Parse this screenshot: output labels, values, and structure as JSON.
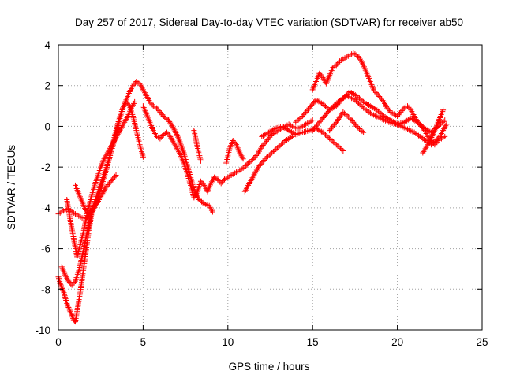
{
  "chart_data": {
    "type": "scatter",
    "title": "Day 257 of 2017, Sidereal Day-to-day VTEC variation (SDTVAR) for receiver ab50",
    "xlabel": "GPS time / hours",
    "ylabel": "SDTVAR / TECUs",
    "xlim": [
      0,
      25
    ],
    "ylim": [
      -10,
      4
    ],
    "xticks": [
      0,
      5,
      10,
      15,
      20,
      25
    ],
    "yticks": [
      -10,
      -8,
      -6,
      -4,
      -2,
      0,
      2,
      4
    ],
    "grid": true,
    "legend": "none",
    "marker": "+",
    "color": "#ff0000",
    "series": [
      {
        "x": [
          0.0,
          0.1,
          0.2,
          0.3,
          0.4,
          0.5,
          0.6,
          0.7,
          0.8,
          0.9,
          1.0,
          1.1,
          1.2,
          1.3,
          1.4,
          1.5,
          1.6,
          1.7,
          1.8,
          1.9,
          2.0,
          2.2,
          2.4,
          2.6,
          2.8,
          3.0,
          3.2,
          3.4,
          3.6,
          3.8,
          4.0,
          4.2,
          4.4,
          4.6,
          4.8,
          5.0,
          5.2,
          5.4,
          5.6,
          5.8,
          6.0,
          6.2,
          6.5
        ],
        "y": [
          -7.4,
          -7.7,
          -7.9,
          -8.1,
          -8.4,
          -8.7,
          -8.9,
          -9.1,
          -9.3,
          -9.5,
          -9.6,
          -9.1,
          -8.6,
          -8.1,
          -7.5,
          -6.9,
          -6.3,
          -5.7,
          -5.1,
          -4.6,
          -4.1,
          -3.6,
          -3.1,
          -2.6,
          -2.1,
          -1.6,
          -1.0,
          -0.4,
          0.3,
          0.9,
          1.3,
          1.7,
          2.0,
          2.2,
          2.1,
          1.8,
          1.5,
          1.2,
          1.0,
          0.9,
          0.7,
          0.5,
          0.3
        ]
      },
      {
        "x": [
          0.0,
          0.2,
          0.4,
          0.6,
          0.8,
          1.0,
          1.2,
          1.4,
          1.6,
          1.8,
          2.0,
          2.2,
          2.4,
          2.6,
          2.8,
          3.0,
          3.2,
          3.4,
          3.6,
          3.8,
          4.0,
          4.2,
          4.4,
          4.6,
          4.8,
          5.0
        ],
        "y": [
          -4.3,
          -4.2,
          -4.1,
          -4.1,
          -4.2,
          -4.3,
          -4.4,
          -4.5,
          -4.5,
          -4.4,
          -4.2,
          -3.8,
          -3.3,
          -2.8,
          -2.2,
          -1.6,
          -0.9,
          -0.2,
          0.4,
          0.9,
          1.2,
          1.0,
          0.5,
          -0.2,
          -0.9,
          -1.5
        ]
      },
      {
        "x": [
          0.5,
          0.7,
          0.9,
          1.1,
          1.3,
          1.5,
          1.7,
          1.9,
          2.1,
          2.3,
          2.5,
          2.7,
          2.9,
          3.1,
          3.3,
          3.5,
          3.7,
          3.9,
          4.1,
          4.3,
          4.5
        ],
        "y": [
          -3.6,
          -4.6,
          -5.5,
          -6.4,
          -5.8,
          -5.1,
          -4.3,
          -3.6,
          -3.0,
          -2.5,
          -2.0,
          -1.6,
          -1.3,
          -1.0,
          -0.7,
          -0.4,
          -0.1,
          0.2,
          0.5,
          0.9,
          1.2
        ]
      },
      {
        "x": [
          1.0,
          1.2,
          1.4,
          1.6,
          1.8,
          2.0,
          2.2,
          2.4,
          2.6,
          2.8,
          3.0,
          3.2,
          3.4
        ],
        "y": [
          -2.9,
          -3.3,
          -3.7,
          -4.1,
          -4.3,
          -4.2,
          -3.9,
          -3.6,
          -3.3,
          -3.0,
          -2.8,
          -2.6,
          -2.4
        ]
      },
      {
        "x": [
          0.2,
          0.4,
          0.6,
          0.8,
          1.0,
          1.2,
          1.4,
          1.6,
          1.8,
          2.0
        ],
        "y": [
          -6.9,
          -7.3,
          -7.6,
          -7.8,
          -7.6,
          -7.1,
          -6.4,
          -5.6,
          -4.8,
          -4.0
        ]
      },
      {
        "x": [
          5.0,
          5.2,
          5.4,
          5.6,
          5.8,
          6.0,
          6.2,
          6.4,
          6.6,
          6.8,
          7.0,
          7.2,
          7.4,
          7.6,
          7.8,
          8.0,
          8.2,
          8.4,
          8.6,
          8.8,
          9.0,
          9.2,
          9.4,
          9.6,
          9.8,
          10.0,
          10.2,
          10.4,
          10.6,
          10.8,
          11.0,
          11.2,
          11.4,
          11.6,
          11.8,
          12.0,
          12.2,
          12.4,
          12.6,
          12.8,
          13.0,
          13.2,
          13.4,
          13.6,
          13.8,
          14.0,
          14.2,
          14.4,
          14.6,
          14.8,
          15.0
        ],
        "y": [
          1.0,
          0.6,
          0.2,
          -0.2,
          -0.5,
          -0.6,
          -0.4,
          -0.3,
          -0.5,
          -0.8,
          -1.1,
          -1.4,
          -1.8,
          -2.3,
          -2.9,
          -3.5,
          -3.2,
          -2.7,
          -2.9,
          -3.2,
          -2.8,
          -2.5,
          -2.6,
          -2.8,
          -2.6,
          -2.5,
          -2.4,
          -2.3,
          -2.2,
          -2.1,
          -2.0,
          -1.8,
          -1.7,
          -1.5,
          -1.3,
          -1.0,
          -0.8,
          -0.6,
          -0.4,
          -0.3,
          -0.2,
          -0.1,
          0.0,
          0.1,
          0.0,
          -0.1,
          -0.1,
          0.0,
          0.1,
          0.2,
          0.3
        ]
      },
      {
        "x": [
          6.5,
          6.8,
          7.1,
          7.4,
          7.7,
          8.0,
          8.3,
          8.6,
          8.9,
          9.1
        ],
        "y": [
          0.3,
          -0.1,
          -0.6,
          -1.3,
          -2.2,
          -3.1,
          -3.6,
          -3.8,
          -3.9,
          -4.2
        ]
      },
      {
        "x": [
          8.0,
          8.2,
          8.4
        ],
        "y": [
          -0.2,
          -1.0,
          -1.7
        ]
      },
      {
        "x": [
          9.9,
          10.1,
          10.3,
          10.5,
          10.7,
          10.9
        ],
        "y": [
          -1.8,
          -1.1,
          -0.7,
          -0.9,
          -1.3,
          -1.6
        ]
      },
      {
        "x": [
          11.0,
          11.4,
          11.8,
          12.2,
          12.6,
          13.0,
          13.4,
          13.8
        ],
        "y": [
          -3.2,
          -2.6,
          -2.0,
          -1.6,
          -1.3,
          -1.0,
          -0.7,
          -0.5
        ]
      },
      {
        "x": [
          12.0,
          12.4,
          12.8,
          13.2,
          13.6,
          14.0,
          14.4,
          14.8,
          15.2,
          15.6,
          16.0,
          16.4,
          16.8
        ],
        "y": [
          -0.5,
          -0.3,
          -0.1,
          0.0,
          -0.2,
          -0.4,
          -0.3,
          -0.2,
          -0.1,
          -0.3,
          -0.6,
          -0.9,
          -1.2
        ]
      },
      {
        "x": [
          15.0,
          15.2,
          15.4,
          15.6,
          15.8,
          16.0,
          16.2,
          16.4,
          16.6,
          16.8,
          17.0,
          17.2,
          17.4,
          17.6,
          17.8,
          18.0,
          18.2,
          18.4,
          18.6,
          18.8,
          19.0,
          19.2,
          19.4,
          19.6,
          19.8,
          20.0,
          20.2,
          20.4,
          20.6,
          20.8,
          21.0,
          21.2,
          21.4,
          21.6,
          21.8,
          22.0,
          22.2,
          22.4,
          22.6,
          22.8
        ],
        "y": [
          1.8,
          2.2,
          2.6,
          2.4,
          2.1,
          2.5,
          2.9,
          3.0,
          3.2,
          3.3,
          3.4,
          3.5,
          3.6,
          3.5,
          3.3,
          3.0,
          2.6,
          2.2,
          1.8,
          1.6,
          1.4,
          1.2,
          0.9,
          0.7,
          0.6,
          0.5,
          0.7,
          0.9,
          1.0,
          0.8,
          0.5,
          0.2,
          0.0,
          -0.2,
          -0.5,
          -0.7,
          -0.9,
          -0.7,
          -0.6,
          -0.5
        ]
      },
      {
        "x": [
          14.0,
          14.4,
          14.8,
          15.2,
          15.6,
          16.0,
          16.4,
          16.8,
          17.2,
          17.6,
          18.0,
          18.4,
          18.8,
          19.2,
          19.6,
          20.0,
          20.4,
          20.8,
          21.2,
          21.6,
          22.0,
          22.4,
          22.8
        ],
        "y": [
          0.2,
          0.5,
          0.9,
          1.3,
          1.1,
          0.8,
          1.0,
          1.4,
          1.7,
          1.5,
          1.2,
          1.0,
          0.8,
          0.5,
          0.3,
          0.1,
          0.2,
          0.4,
          0.2,
          -0.1,
          -0.3,
          0.0,
          0.3
        ]
      },
      {
        "x": [
          15.0,
          15.5,
          16.0,
          16.5,
          17.0,
          17.5,
          18.0,
          18.5,
          19.0,
          19.5,
          20.0,
          20.5,
          21.0,
          21.5,
          22.0,
          22.5,
          22.9
        ],
        "y": [
          -0.2,
          0.3,
          0.8,
          1.2,
          1.5,
          1.3,
          0.9,
          0.6,
          0.4,
          0.2,
          0.1,
          -0.1,
          -0.3,
          -0.6,
          -0.9,
          -0.5,
          0.1
        ]
      },
      {
        "x": [
          16.0,
          16.4,
          16.8,
          17.2,
          17.6,
          18.0
        ],
        "y": [
          -0.2,
          0.2,
          0.7,
          0.4,
          0.0,
          -0.3
        ]
      },
      {
        "x": [
          21.5,
          21.8,
          22.1,
          22.4,
          22.7
        ],
        "y": [
          -1.3,
          -0.9,
          -0.4,
          0.2,
          0.8
        ]
      }
    ]
  }
}
